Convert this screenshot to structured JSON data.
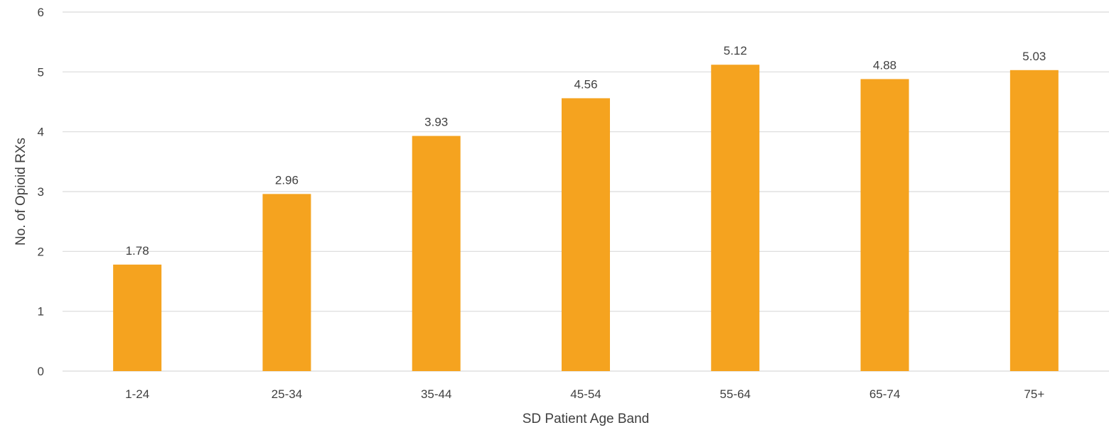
{
  "chart_data": {
    "type": "bar",
    "title": "",
    "xlabel": "SD Patient Age Band",
    "ylabel": "No. of Opioid RXs",
    "categories": [
      "1-24",
      "25-34",
      "35-44",
      "45-54",
      "55-64",
      "65-74",
      "75+"
    ],
    "values": [
      1.78,
      2.96,
      3.93,
      4.56,
      5.12,
      4.88,
      5.03
    ],
    "value_labels": [
      "1.78",
      "2.96",
      "3.93",
      "4.56",
      "5.12",
      "4.88",
      "5.03"
    ],
    "yticks": [
      "0",
      "1",
      "2",
      "3",
      "4",
      "5",
      "6"
    ],
    "ylim": [
      0,
      6
    ],
    "grid": "horizontal",
    "legend": "none",
    "colors": {
      "bar": "#F5A31F",
      "grid": "#D9D9D9",
      "text": "#404040"
    }
  }
}
